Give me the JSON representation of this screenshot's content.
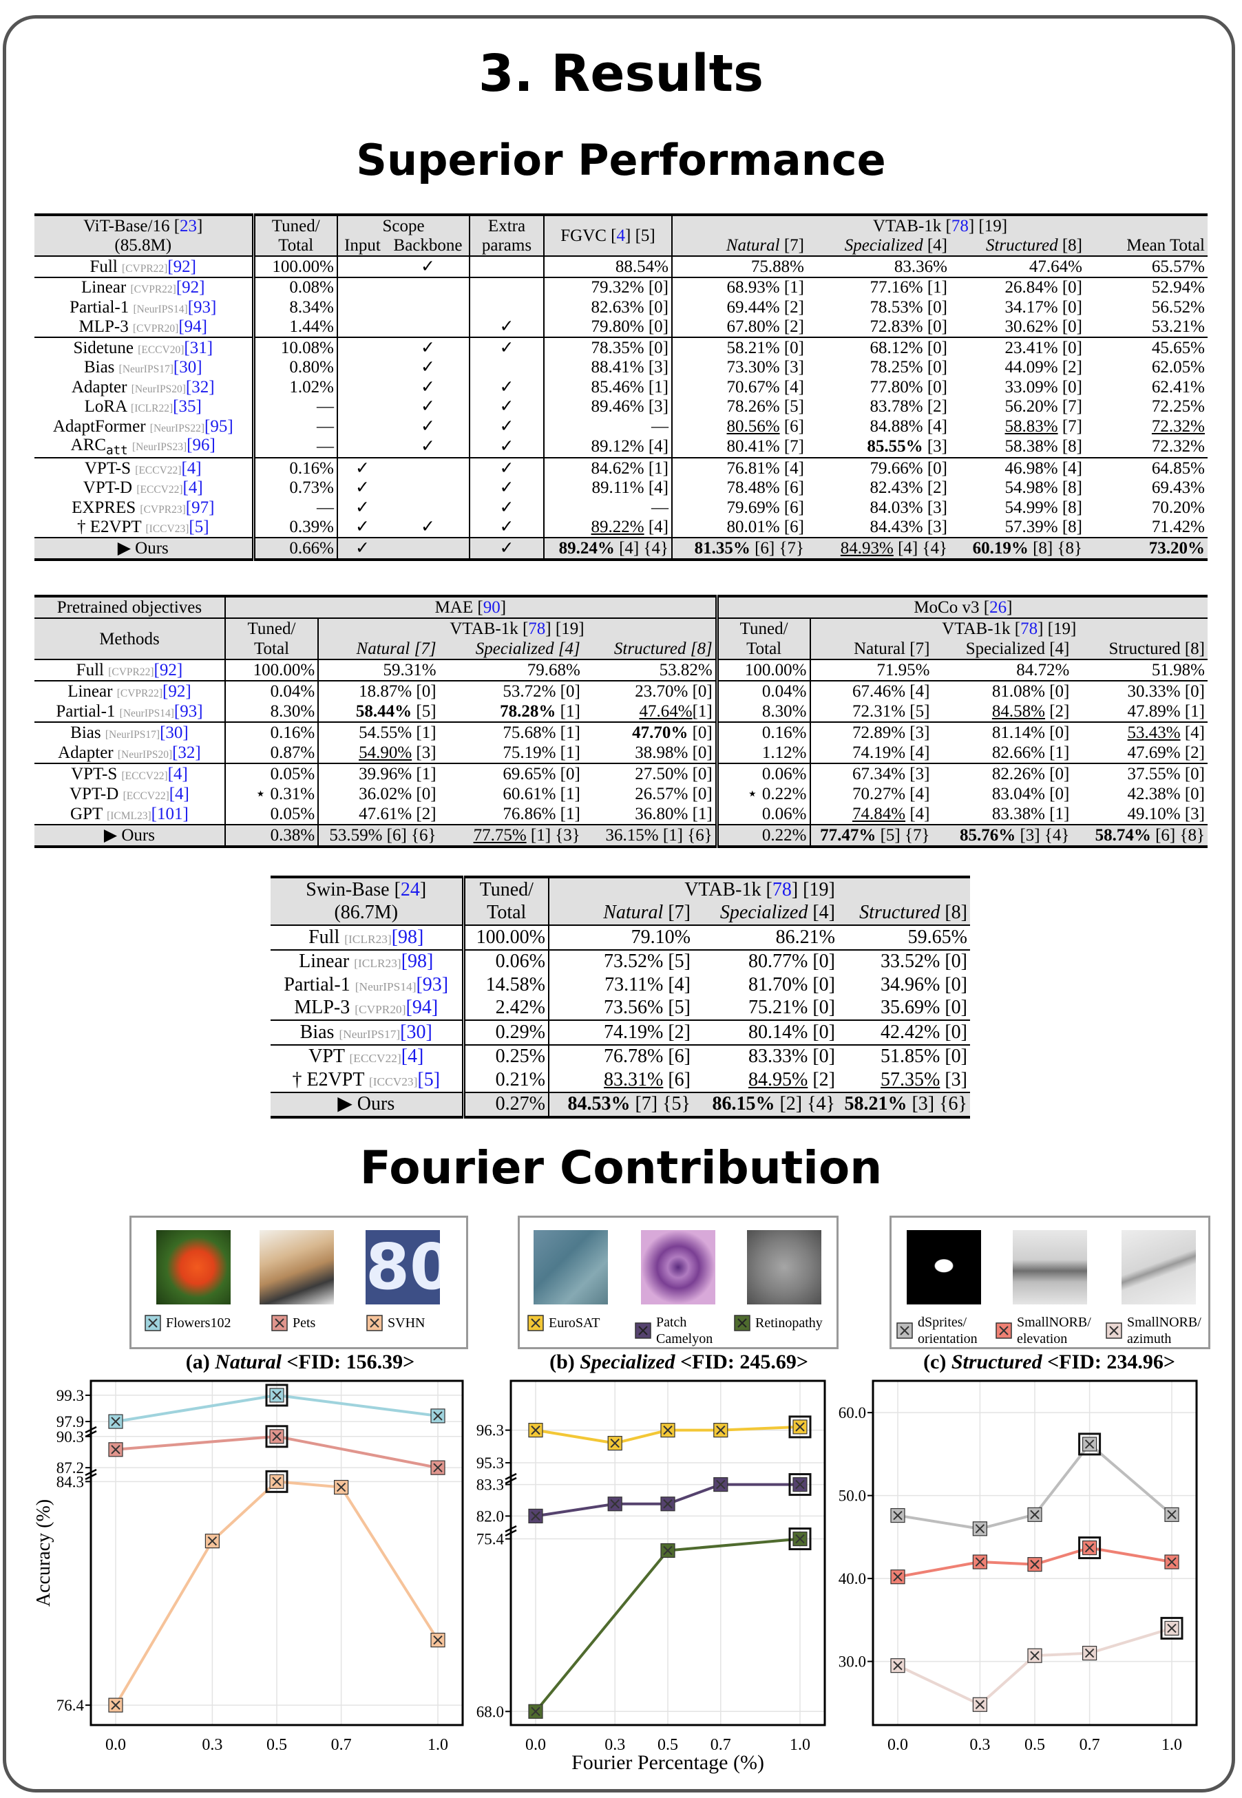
{
  "title": "3. Results",
  "section1": "Superior Performance",
  "section2": "Fourier Contribution",
  "table1": {
    "h_model": [
      "ViT-Base/16 [",
      "23",
      "]"
    ],
    "h_model2": "(85.8M)",
    "h_tuned": "Tuned/",
    "h_total": "Total",
    "h_scope": "Scope",
    "h_input": "Input",
    "h_backbone": "Backbone",
    "h_extra": "Extra",
    "h_params": "params",
    "h_fgvc": [
      "FGVC [",
      "4",
      "] [5]"
    ],
    "h_vtab": [
      "VTAB-1k [",
      "78",
      "] [19]"
    ],
    "h_nat": "Natural",
    "h_nat_n": " [7]",
    "h_spe": "Specialized",
    "h_spe_n": " [4]",
    "h_str": "Structured",
    "h_str_n": " [8]",
    "h_mean": "Mean Total"
  },
  "table2": {
    "h_pre": "Pretrained objectives",
    "h_methods": "Methods",
    "h_mae": [
      "MAE [",
      "90",
      "]"
    ],
    "h_moco": [
      "MoCo v3 [",
      "26",
      "]"
    ],
    "h_tuned": "Tuned/",
    "h_total": "Total",
    "h_vtab": [
      "VTAB-1k [",
      "78",
      "] [19]"
    ],
    "h_nat": "Natural [7]",
    "h_spe": "Specialized [4]",
    "h_str": "Structured [8]"
  },
  "table3": {
    "h_model": [
      "Swin-Base [",
      "24",
      "]"
    ],
    "h_model2": "(86.7M)",
    "h_tuned": "Tuned/",
    "h_total": "Total",
    "h_vtab": [
      "VTAB-1k [",
      "78",
      "] [19]"
    ],
    "h_nat": "Natural",
    "h_nat_n": " [7]",
    "h_spe": "Specialized",
    "h_spe_n": " [4]",
    "h_str": "Structured",
    "h_str_n": " [8]"
  },
  "panels": [
    {
      "title_pre": "(a) ",
      "title_it": "Natural",
      "title_post": " <FID: 156.39>",
      "legend": [
        "Flowers102",
        "Pets",
        "SVHN"
      ],
      "colors": [
        "#9fd3dd",
        "#e0958d",
        "#f6c39a"
      ]
    },
    {
      "title_pre": "(b) ",
      "title_it": "Specialized",
      "title_post": " <FID: 245.69>",
      "legend": [
        "EuroSAT",
        "Patch Camelyon",
        "Retinopathy"
      ],
      "colors": [
        "#f3c736",
        "#55426e",
        "#4f6b2e"
      ]
    },
    {
      "title_pre": "(c) ",
      "title_it": "Structured",
      "title_post": " <FID: 234.96>",
      "legend": [
        "dSprites/ orientation",
        "SmallNORB/ elevation",
        "SmallNORB/ azimuth"
      ],
      "colors": [
        "#bdbdbd",
        "#ef8073",
        "#ead7d2"
      ]
    }
  ],
  "chart_data": [
    {
      "type": "line",
      "title": "(a) Natural <FID: 156.39>",
      "ylabel": "Accuracy (%)",
      "xlabel": "",
      "x": [
        0.0,
        0.3,
        0.5,
        0.7,
        1.0
      ],
      "x_ticks": [
        "0.0",
        "0.3",
        "0.5",
        "0.7",
        "1.0"
      ],
      "y_ticks": [
        "99.3",
        "97.9",
        "90.3",
        "87.2",
        "84.3",
        "76.4"
      ],
      "y_axis": "broken",
      "series": [
        {
          "name": "Flowers102",
          "x": [
            0.0,
            0.5,
            1.0
          ],
          "values": [
            97.9,
            99.3,
            98.2
          ],
          "best_x": 0.5
        },
        {
          "name": "Pets",
          "x": [
            0.0,
            0.5,
            1.0
          ],
          "values": [
            89.0,
            90.3,
            87.2
          ],
          "best_x": 0.5
        },
        {
          "name": "SVHN",
          "x": [
            0.0,
            0.3,
            0.5,
            0.7,
            1.0
          ],
          "values": [
            76.4,
            82.2,
            84.3,
            84.1,
            78.7
          ],
          "best_x": 0.5
        }
      ]
    },
    {
      "type": "line",
      "title": "(b) Specialized <FID: 245.69>",
      "xlabel": "Fourier Percentage (%)",
      "ylabel": "",
      "x": [
        0.0,
        0.3,
        0.5,
        0.7,
        1.0
      ],
      "x_ticks": [
        "0.0",
        "0.3",
        "0.5",
        "0.7",
        "1.0"
      ],
      "y_ticks": [
        "96.3",
        "95.3",
        "83.3",
        "82.0",
        "75.4",
        "68.0"
      ],
      "y_axis": "broken",
      "series": [
        {
          "name": "EuroSAT",
          "x": [
            0.0,
            0.3,
            0.5,
            0.7,
            1.0
          ],
          "values": [
            96.3,
            95.9,
            96.3,
            96.3,
            96.4
          ],
          "best_x": 1.0
        },
        {
          "name": "Patch Camelyon",
          "x": [
            0.0,
            0.3,
            0.5,
            0.7,
            1.0
          ],
          "values": [
            82.0,
            82.5,
            82.5,
            83.3,
            83.3
          ],
          "best_x": 1.0
        },
        {
          "name": "Retinopathy",
          "x": [
            0.0,
            0.5,
            1.0
          ],
          "values": [
            68.0,
            74.9,
            75.4
          ],
          "best_x": 1.0
        }
      ]
    },
    {
      "type": "line",
      "title": "(c) Structured <FID: 234.96>",
      "xlabel": "",
      "ylabel": "",
      "x": [
        0.0,
        0.3,
        0.5,
        0.7,
        1.0
      ],
      "x_ticks": [
        "0.0",
        "0.3",
        "0.5",
        "0.7",
        "1.0"
      ],
      "y_ticks": [
        "60.0",
        "50.0",
        "40.0",
        "30.0"
      ],
      "ylim": [
        22,
        63
      ],
      "series": [
        {
          "name": "dSprites/ orientation",
          "x": [
            0.0,
            0.3,
            0.5,
            0.7,
            1.0
          ],
          "values": [
            47.6,
            46.0,
            47.7,
            56.2,
            47.7
          ],
          "best_x": 0.7
        },
        {
          "name": "SmallNORB/ elevation",
          "x": [
            0.0,
            0.3,
            0.5,
            0.7,
            1.0
          ],
          "values": [
            40.2,
            42.0,
            41.7,
            43.7,
            42.0
          ],
          "best_x": 0.7
        },
        {
          "name": "SmallNORB/ azimuth",
          "x": [
            0.0,
            0.3,
            0.5,
            0.7,
            1.0
          ],
          "values": [
            29.5,
            24.8,
            30.7,
            31.0,
            34.0
          ],
          "best_x": 1.0
        }
      ]
    }
  ]
}
